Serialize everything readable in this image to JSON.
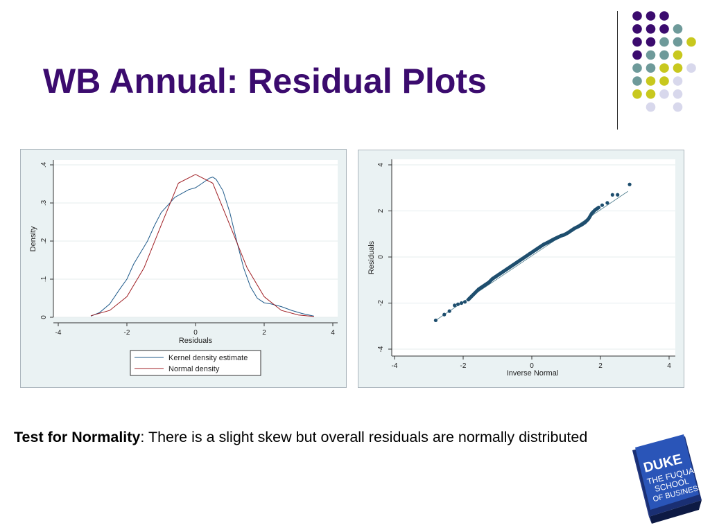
{
  "slide": {
    "title": "WB Annual: Residual Plots",
    "caption_bold": "Test for Normality",
    "caption_rest": ": There is a slight skew but overall residuals are normally distributed"
  },
  "logo": {
    "lines": [
      "DUKE",
      "THE FUQUA",
      "SCHOOL",
      "OF BUSINESS"
    ]
  },
  "colors": {
    "title": "#3b0b6e",
    "dot_purple": "#3b0b6e",
    "dot_teal": "#6e9a9a",
    "dot_yellow": "#c8c81e",
    "dot_lavender": "#d8d8ec",
    "kernel_line": "#1f5a8a",
    "normal_line": "#a01f24",
    "qq_marker": "#1e4e6e"
  },
  "dot_grid": [
    [
      "purple",
      "purple",
      "purple",
      "",
      "",
      ""
    ],
    [
      "purple",
      "purple",
      "purple",
      "teal",
      "",
      ""
    ],
    [
      "purple",
      "purple",
      "teal",
      "teal",
      "yellow",
      ""
    ],
    [
      "purple",
      "teal",
      "teal",
      "yellow",
      "",
      ""
    ],
    [
      "teal",
      "teal",
      "yellow",
      "yellow",
      "lavender",
      ""
    ],
    [
      "teal",
      "yellow",
      "yellow",
      "lavender",
      "",
      ""
    ],
    [
      "yellow",
      "yellow",
      "lavender",
      "lavender",
      "",
      ""
    ],
    [
      "",
      "lavender",
      "",
      "lavender",
      "",
      ""
    ]
  ],
  "chart_data": [
    {
      "type": "line",
      "xlabel": "Residuals",
      "ylabel": "Density",
      "xlim": [
        -4,
        4
      ],
      "ylim": [
        0,
        0.4
      ],
      "xticks": [
        "-4",
        "-2",
        "0",
        "2",
        "4"
      ],
      "yticks": [
        "0",
        ".1",
        ".2",
        ".3",
        ".4"
      ],
      "grid": true,
      "legend": "bottom",
      "series": [
        {
          "name": "Kernel density estimate",
          "color": "#1f5a8a",
          "x": [
            -3.05,
            -2.8,
            -2.5,
            -2.2,
            -2.0,
            -1.8,
            -1.6,
            -1.4,
            -1.2,
            -1.0,
            -0.8,
            -0.6,
            -0.4,
            -0.2,
            0.0,
            0.2,
            0.4,
            0.5,
            0.6,
            0.8,
            1.0,
            1.2,
            1.4,
            1.6,
            1.8,
            2.0,
            2.2,
            2.5,
            2.8,
            3.1,
            3.45
          ],
          "y": [
            0.003,
            0.012,
            0.035,
            0.075,
            0.1,
            0.14,
            0.17,
            0.2,
            0.24,
            0.275,
            0.295,
            0.315,
            0.325,
            0.335,
            0.34,
            0.352,
            0.365,
            0.368,
            0.362,
            0.332,
            0.275,
            0.2,
            0.13,
            0.08,
            0.05,
            0.038,
            0.035,
            0.028,
            0.018,
            0.01,
            0.003
          ]
        },
        {
          "name": "Normal density",
          "color": "#a01f24",
          "x": [
            -3.05,
            -2.5,
            -2.0,
            -1.5,
            -1.0,
            -0.5,
            0.0,
            0.5,
            1.0,
            1.5,
            2.0,
            2.5,
            3.0,
            3.45
          ],
          "y": [
            0.004,
            0.018,
            0.054,
            0.13,
            0.242,
            0.352,
            0.375,
            0.352,
            0.242,
            0.13,
            0.054,
            0.018,
            0.006,
            0.002
          ]
        }
      ]
    },
    {
      "type": "scatter",
      "xlabel": "Inverse Normal",
      "ylabel": "Residuals",
      "xlim": [
        -4,
        4
      ],
      "ylim": [
        -4,
        4
      ],
      "xticks": [
        "-4",
        "-2",
        "0",
        "2",
        "4"
      ],
      "yticks": [
        "-4",
        "-2",
        "0",
        "2",
        "4"
      ],
      "grid": true,
      "reference_line": {
        "x": [
          -2.8,
          2.8
        ],
        "y": [
          -2.75,
          2.85
        ]
      },
      "points": {
        "x": [
          -2.8,
          -2.55,
          -2.4,
          -2.25,
          -2.15,
          -2.05,
          -1.95,
          -1.85,
          -1.75,
          -1.65,
          -1.55,
          -1.45,
          -1.35,
          -1.25,
          -1.15,
          -1.05,
          -0.95,
          -0.85,
          -0.75,
          -0.65,
          -0.55,
          -0.45,
          -0.35,
          -0.25,
          -0.15,
          -0.05,
          0.05,
          0.15,
          0.25,
          0.35,
          0.45,
          0.55,
          0.65,
          0.75,
          0.85,
          0.95,
          1.05,
          1.15,
          1.25,
          1.35,
          1.45,
          1.55,
          1.65,
          1.75,
          1.85,
          1.95,
          2.05,
          2.2,
          2.35,
          2.5,
          2.85
        ],
        "y": [
          -2.75,
          -2.5,
          -2.35,
          -2.1,
          -2.05,
          -2.0,
          -1.95,
          -1.85,
          -1.7,
          -1.55,
          -1.4,
          -1.3,
          -1.2,
          -1.1,
          -0.95,
          -0.85,
          -0.75,
          -0.65,
          -0.55,
          -0.45,
          -0.35,
          -0.25,
          -0.15,
          -0.05,
          0.05,
          0.15,
          0.25,
          0.35,
          0.45,
          0.55,
          0.62,
          0.7,
          0.78,
          0.85,
          0.92,
          0.97,
          1.05,
          1.15,
          1.25,
          1.32,
          1.4,
          1.5,
          1.65,
          1.9,
          2.05,
          2.15,
          2.25,
          2.35,
          2.7,
          2.7,
          3.15
        ]
      }
    }
  ]
}
